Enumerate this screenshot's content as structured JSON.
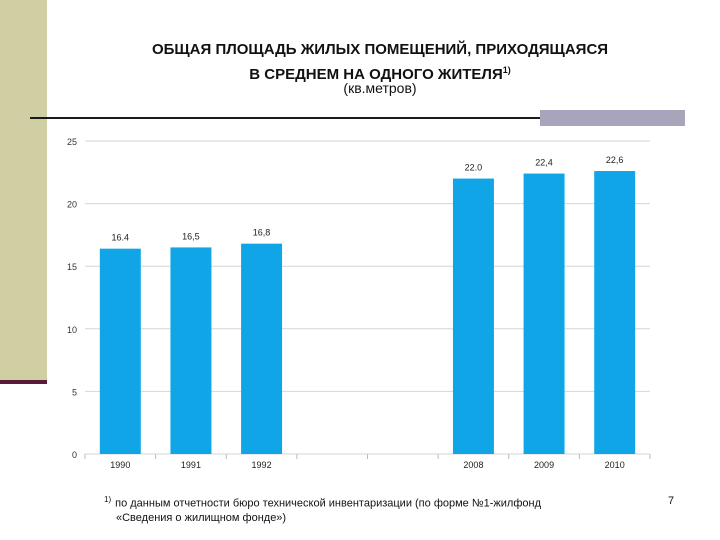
{
  "slide": {
    "title_line1": "ОБЩАЯ ПЛОЩАДЬ ЖИЛЫХ ПОМЕЩЕНИЙ, ПРИХОДЯЩАЯСЯ",
    "title_line2": "В СРЕДНЕМ НА ОДНОГО ЖИТЕЛЯ",
    "title_sup": "1)",
    "subtitle": "(кв.метров)",
    "footnote_mark": "1)",
    "footnote_line1": "по данным отчетности бюро технической инвентаризации (по форме №1-жилфонд",
    "footnote_line2": "«Сведения о жилищном фонде»)",
    "page_number": "7"
  },
  "colors": {
    "bar": "#0fa5e6",
    "grid": "#d6d6d6",
    "left_band": "#cfcfa3",
    "top_block": "#a7a4bb"
  },
  "chart_data": {
    "type": "bar",
    "title": "ОБЩАЯ ПЛОЩАДЬ ЖИЛЫХ ПОМЕЩЕНИЙ, ПРИХОДЯЩАЯСЯ В СРЕДНЕМ НА ОДНОГО ЖИТЕЛЯ",
    "subtitle": "(кв.метров)",
    "categories": [
      "1990",
      "1991",
      "1992",
      "",
      "",
      "2008",
      "2009",
      "2010"
    ],
    "values": [
      16.4,
      16.5,
      16.8,
      null,
      null,
      22.0,
      22.4,
      22.6
    ],
    "labels": [
      "16.4",
      "16,5",
      "16,8",
      "",
      "",
      "22.0",
      "22,4",
      "22,6"
    ],
    "yticks": [
      0,
      5,
      10,
      15,
      20,
      25
    ],
    "ylim": [
      0,
      25
    ],
    "grid": true,
    "legend": "none"
  }
}
